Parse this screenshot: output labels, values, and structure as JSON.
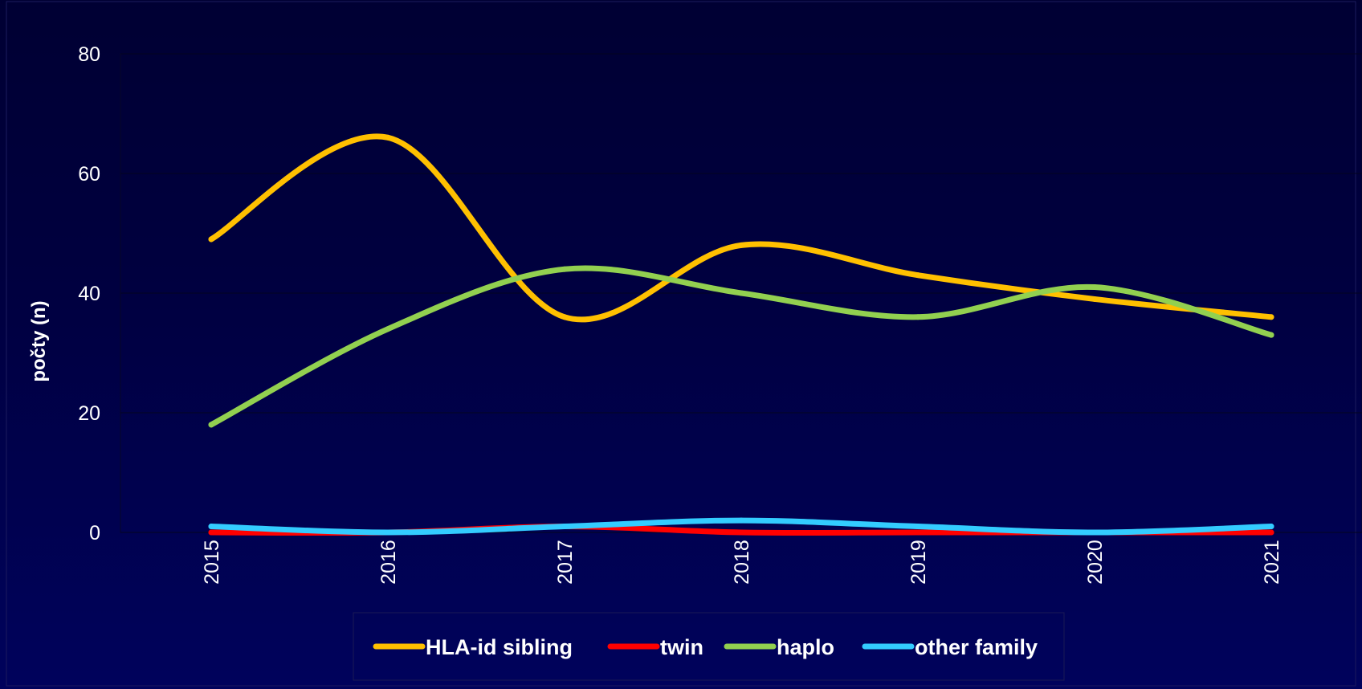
{
  "chart_data": {
    "type": "line",
    "title": "",
    "xlabel": "",
    "ylabel": "počty (n)",
    "categories": [
      "2015",
      "2016",
      "2017",
      "2018",
      "2019",
      "2020",
      "2021"
    ],
    "ylim": [
      0,
      80
    ],
    "yticks": [
      "0",
      "20",
      "40",
      "60",
      "80"
    ],
    "grid": "horizontal",
    "smooth": true,
    "legend_position": "bottom",
    "series": [
      {
        "name": "HLA-id sibling",
        "color": "#FFC000",
        "values": [
          49,
          66,
          36,
          48,
          43,
          39,
          36
        ]
      },
      {
        "name": "twin",
        "color": "#FF0000",
        "values": [
          0,
          0,
          1,
          0,
          0,
          0,
          0
        ]
      },
      {
        "name": "haplo",
        "color": "#92D050",
        "values": [
          18,
          34,
          44,
          40,
          36,
          41,
          33
        ]
      },
      {
        "name": "other family",
        "color": "#33CCFF",
        "values": [
          1,
          0,
          1,
          2,
          1,
          0,
          1
        ]
      }
    ]
  }
}
